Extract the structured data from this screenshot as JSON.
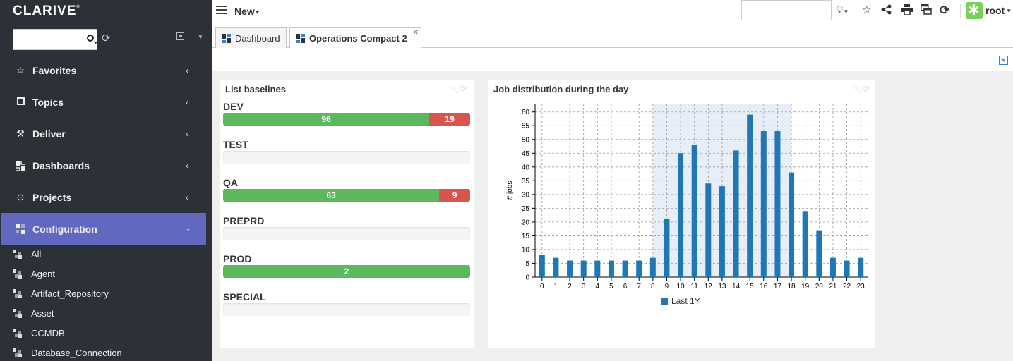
{
  "sidebar": {
    "logo": "CLARIVE",
    "logo_mark": "®",
    "search_placeholder": "",
    "nav": [
      {
        "label": "Favorites",
        "icon": "star-icon"
      },
      {
        "label": "Topics",
        "icon": "square-icon"
      },
      {
        "label": "Deliver",
        "icon": "hammer-icon"
      },
      {
        "label": "Dashboards",
        "icon": "dashboard-icon"
      },
      {
        "label": "Projects",
        "icon": "target-icon"
      },
      {
        "label": "Configuration",
        "icon": "config-icon",
        "active": true
      }
    ],
    "config_items": [
      "All",
      "Agent",
      "Artifact_Repository",
      "Asset",
      "CCMDB",
      "Database_Connection"
    ]
  },
  "topbar": {
    "new_label": "New",
    "search_value": "",
    "user": "root"
  },
  "tabs": [
    {
      "label": "Dashboard",
      "active": false
    },
    {
      "label": "Operations Compact 2",
      "active": true
    }
  ],
  "baselines": {
    "title": "List baselines",
    "items": [
      {
        "name": "DEV",
        "ok": 96,
        "fail": 19,
        "ok_label": "96",
        "fail_label": "19"
      },
      {
        "name": "TEST",
        "ok": 0,
        "fail": 0,
        "ok_label": "",
        "fail_label": ""
      },
      {
        "name": "QA",
        "ok": 63,
        "fail": 9,
        "ok_label": "63",
        "fail_label": "9"
      },
      {
        "name": "PREPRD",
        "ok": 0,
        "fail": 0,
        "ok_label": "",
        "fail_label": ""
      },
      {
        "name": "PROD",
        "ok": 2,
        "fail": 0,
        "ok_label": "2",
        "fail_label": ""
      },
      {
        "name": "SPECIAL",
        "ok": 0,
        "fail": 0,
        "ok_label": "",
        "fail_label": ""
      }
    ]
  },
  "chart_data": {
    "type": "bar",
    "title": "Job distribution during the day",
    "xlabel": "",
    "ylabel": "# jobs",
    "categories": [
      "0",
      "1",
      "2",
      "3",
      "4",
      "5",
      "6",
      "7",
      "8",
      "9",
      "10",
      "11",
      "12",
      "13",
      "14",
      "15",
      "16",
      "17",
      "18",
      "19",
      "20",
      "21",
      "22",
      "23"
    ],
    "series": [
      {
        "name": "Last 1Y",
        "values": [
          8,
          7,
          6,
          6,
          6,
          6,
          6,
          6,
          7,
          21,
          45,
          48,
          34,
          33,
          46,
          59,
          53,
          53,
          38,
          24,
          17,
          7,
          6,
          7
        ]
      }
    ],
    "ylim": [
      0,
      63
    ],
    "yticks": [
      0,
      5,
      10,
      15,
      20,
      25,
      30,
      35,
      40,
      45,
      50,
      55,
      60
    ],
    "highlight_range": [
      8,
      18
    ],
    "grid": true,
    "legend_position": "bottom",
    "colors": {
      "bar": "#1f77b4",
      "highlight": "#e8eef7"
    }
  }
}
